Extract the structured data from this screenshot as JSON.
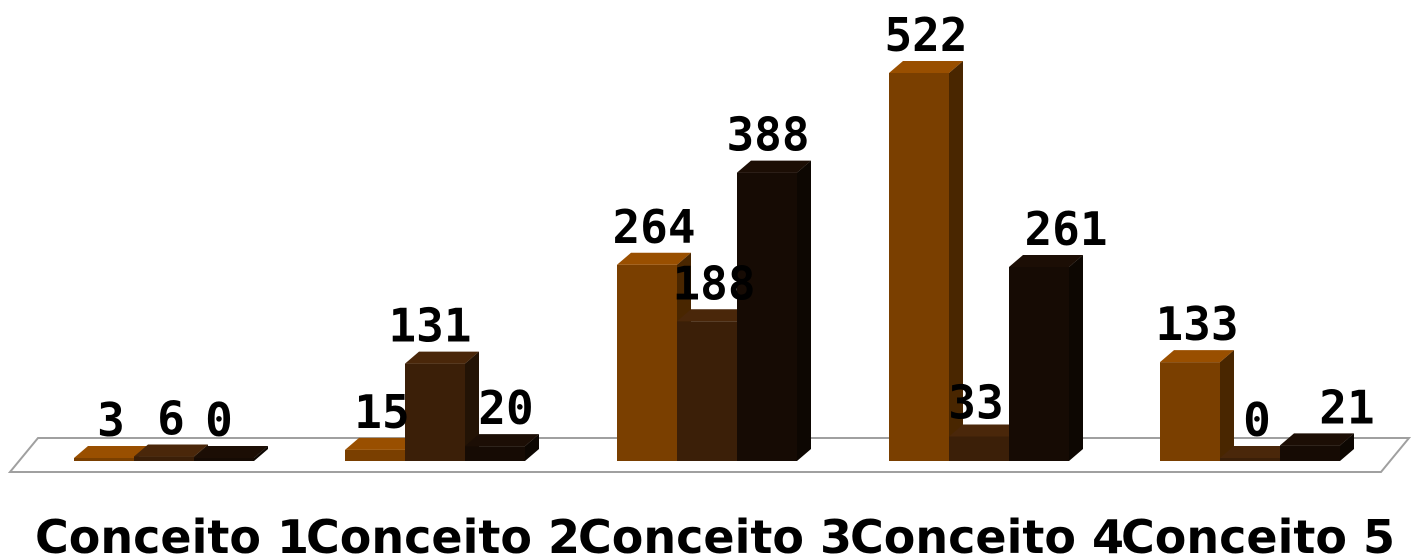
{
  "chart_data": {
    "type": "bar",
    "style": "3d-clustered-column",
    "categories": [
      "Conceito 1",
      "Conceito 2",
      "Conceito 3",
      "Conceito 4",
      "Conceito 5"
    ],
    "series": [
      {
        "values": [
          3,
          15,
          264,
          522,
          133
        ],
        "color": "#7a3f00"
      },
      {
        "values": [
          6,
          131,
          188,
          33,
          0
        ],
        "color": "#3b1f08"
      },
      {
        "values": [
          0,
          20,
          388,
          261,
          21
        ],
        "color": "#160b04"
      }
    ],
    "data_labels": true,
    "grid": false,
    "legend": "none",
    "floor_color": "#ffffff",
    "floor_edge_color": "#a0a0a0"
  }
}
